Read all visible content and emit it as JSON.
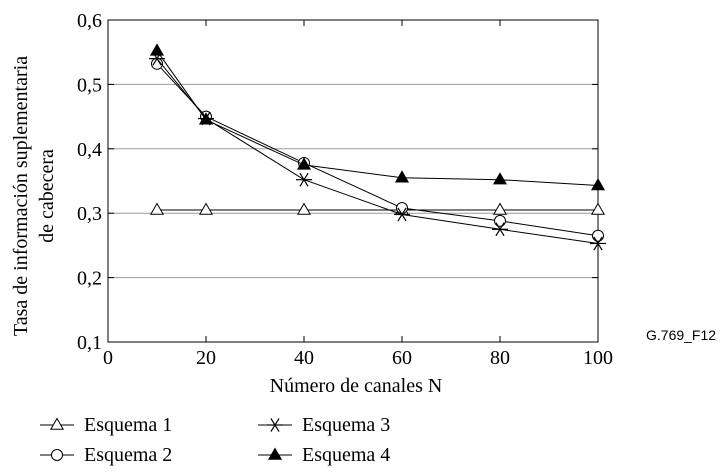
{
  "figure_id": "G.769_F12",
  "chart_data": {
    "type": "line",
    "xlabel": "Número de canales N",
    "ylabel_lines": [
      "Tasa de información suplementaria",
      "de cabecera"
    ],
    "xlim": [
      0,
      100
    ],
    "ylim": [
      0.1,
      0.6
    ],
    "x_ticks": [
      0,
      20,
      40,
      60,
      80,
      100
    ],
    "x_tick_labels": [
      "0",
      "20",
      "40",
      "60",
      "80",
      "100"
    ],
    "y_ticks": [
      0.1,
      0.2,
      0.3,
      0.4,
      0.5,
      0.6
    ],
    "y_tick_labels": [
      "0,1",
      "0,2",
      "0,3",
      "0,4",
      "0,5",
      "0,6"
    ],
    "grid": "horizontal",
    "legend_position": "bottom",
    "x": [
      10,
      20,
      40,
      60,
      80,
      100
    ],
    "series": [
      {
        "name": "Esquema 1",
        "marker": "triangle-open",
        "values": [
          0.305,
          0.305,
          0.305,
          0.305,
          0.305,
          0.305
        ]
      },
      {
        "name": "Esquema 2",
        "marker": "circle-open",
        "values": [
          0.532,
          0.45,
          0.378,
          0.308,
          0.288,
          0.265
        ]
      },
      {
        "name": "Esquema 3",
        "marker": "asterisk",
        "values": [
          0.54,
          0.447,
          0.352,
          0.298,
          0.275,
          0.253
        ]
      },
      {
        "name": "Esquema 4",
        "marker": "triangle-filled",
        "values": [
          0.552,
          0.445,
          0.375,
          0.355,
          0.352,
          0.343
        ]
      }
    ]
  }
}
